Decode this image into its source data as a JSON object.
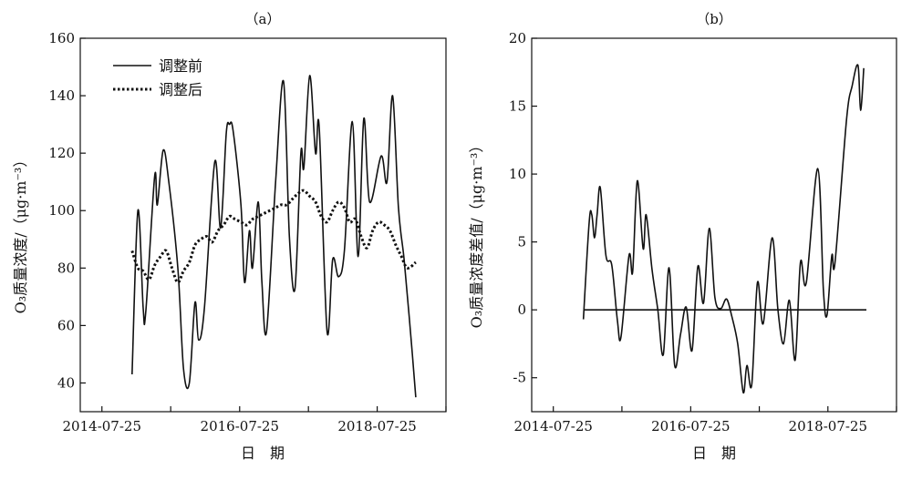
{
  "chart_data": [
    {
      "type": "line",
      "title": "（a）",
      "xlabel": "日　期",
      "ylabel": "O₃质量浓度/（μg·m⁻³）",
      "x_tick_labels": [
        "2014-07-25",
        "2016-07-25",
        "2018-07-25"
      ],
      "x_ticks": [
        "2014-07-25",
        "2015-07-25",
        "2016-07-25",
        "2017-07-25",
        "2018-07-25",
        "2019-07-25"
      ],
      "xlim": [
        "2014-04-01",
        "2019-07-25"
      ],
      "ylim": [
        30,
        160
      ],
      "y_ticks": [
        40,
        60,
        80,
        100,
        120,
        140,
        160
      ],
      "legend_position": "top-left",
      "grid": false,
      "series": [
        {
          "name": "调整前",
          "style": "solid",
          "points": [
            [
              "2015-01-01",
              43
            ],
            [
              "2015-02-01",
              100
            ],
            [
              "2015-03-01",
              66
            ],
            [
              "2015-03-15",
              65
            ],
            [
              "2015-05-01",
              112
            ],
            [
              "2015-05-15",
              102
            ],
            [
              "2015-06-15",
              121
            ],
            [
              "2015-07-15",
              110
            ],
            [
              "2015-09-01",
              80
            ],
            [
              "2015-10-01",
              45
            ],
            [
              "2015-11-01",
              40
            ],
            [
              "2015-12-01",
              68
            ],
            [
              "2015-12-20",
              55
            ],
            [
              "2016-01-20",
              66
            ],
            [
              "2016-03-15",
              117
            ],
            [
              "2016-04-15",
              94
            ],
            [
              "2016-05-15",
              127
            ],
            [
              "2016-06-01",
              130
            ],
            [
              "2016-06-20",
              128
            ],
            [
              "2016-08-01",
              102
            ],
            [
              "2016-08-20",
              75
            ],
            [
              "2016-09-15",
              93
            ],
            [
              "2016-10-01",
              80
            ],
            [
              "2016-11-01",
              103
            ],
            [
              "2016-11-20",
              75
            ],
            [
              "2016-12-15",
              58
            ],
            [
              "2017-02-01",
              110
            ],
            [
              "2017-03-15",
              145
            ],
            [
              "2017-04-15",
              91
            ],
            [
              "2017-05-15",
              73
            ],
            [
              "2017-06-15",
              120
            ],
            [
              "2017-07-01",
              115
            ],
            [
              "2017-08-01",
              147
            ],
            [
              "2017-09-01",
              120
            ],
            [
              "2017-09-20",
              129
            ],
            [
              "2017-11-01",
              58
            ],
            [
              "2017-12-01",
              83
            ],
            [
              "2018-01-01",
              77
            ],
            [
              "2018-02-01",
              86
            ],
            [
              "2018-03-15",
              131
            ],
            [
              "2018-04-15",
              84
            ],
            [
              "2018-05-15",
              132
            ],
            [
              "2018-06-15",
              103
            ],
            [
              "2018-08-15",
              119
            ],
            [
              "2018-09-15",
              110
            ],
            [
              "2018-10-15",
              140
            ],
            [
              "2018-11-15",
              101
            ],
            [
              "2018-12-15",
              83
            ],
            [
              "2019-01-15",
              60
            ],
            [
              "2019-02-15",
              35
            ]
          ]
        },
        {
          "name": "调整后",
          "style": "dotted",
          "points": [
            [
              "2015-01-01",
              86
            ],
            [
              "2015-02-01",
              80
            ],
            [
              "2015-03-01",
              79
            ],
            [
              "2015-04-01",
              76
            ],
            [
              "2015-05-01",
              81
            ],
            [
              "2015-06-01",
              84
            ],
            [
              "2015-07-01",
              86
            ],
            [
              "2015-08-01",
              80
            ],
            [
              "2015-09-01",
              75
            ],
            [
              "2015-10-01",
              79
            ],
            [
              "2015-11-01",
              82
            ],
            [
              "2015-12-01",
              88
            ],
            [
              "2016-01-01",
              90
            ],
            [
              "2016-02-01",
              91
            ],
            [
              "2016-03-01",
              89
            ],
            [
              "2016-04-01",
              93
            ],
            [
              "2016-05-01",
              95
            ],
            [
              "2016-06-01",
              98
            ],
            [
              "2016-07-01",
              97
            ],
            [
              "2016-08-01",
              96
            ],
            [
              "2016-09-01",
              95
            ],
            [
              "2016-10-01",
              97
            ],
            [
              "2016-11-01",
              98
            ],
            [
              "2016-12-01",
              99
            ],
            [
              "2017-01-01",
              100
            ],
            [
              "2017-02-01",
              101
            ],
            [
              "2017-03-01",
              102
            ],
            [
              "2017-04-01",
              102
            ],
            [
              "2017-05-01",
              104
            ],
            [
              "2017-06-01",
              106
            ],
            [
              "2017-07-01",
              107
            ],
            [
              "2017-08-01",
              105
            ],
            [
              "2017-09-01",
              103
            ],
            [
              "2017-10-01",
              98
            ],
            [
              "2017-11-01",
              96
            ],
            [
              "2017-12-01",
              100
            ],
            [
              "2018-01-01",
              103
            ],
            [
              "2018-02-01",
              101
            ],
            [
              "2018-03-01",
              96
            ],
            [
              "2018-04-01",
              97
            ],
            [
              "2018-05-01",
              91
            ],
            [
              "2018-06-01",
              87
            ],
            [
              "2018-07-01",
              93
            ],
            [
              "2018-08-01",
              96
            ],
            [
              "2018-09-01",
              95
            ],
            [
              "2018-10-01",
              93
            ],
            [
              "2018-11-01",
              88
            ],
            [
              "2018-12-01",
              84
            ],
            [
              "2019-01-01",
              80
            ],
            [
              "2019-02-15",
              82
            ]
          ]
        }
      ]
    },
    {
      "type": "line",
      "title": "（b）",
      "xlabel": "日　期",
      "ylabel": "O₃质量浓度差值/（μg·m⁻³）",
      "x_tick_labels": [
        "2014-07-25",
        "2016-07-25",
        "2018-07-25"
      ],
      "x_ticks": [
        "2014-07-25",
        "2015-07-25",
        "2016-07-25",
        "2017-07-25",
        "2018-07-25",
        "2019-07-25"
      ],
      "xlim": [
        "2014-04-01",
        "2019-07-25"
      ],
      "ylim": [
        -7.5,
        20
      ],
      "y_ticks": [
        -5,
        0,
        5,
        10,
        15,
        20
      ],
      "grid": false,
      "series": [
        {
          "style": "solid",
          "points": [
            [
              "2015-01-01",
              -0.7
            ],
            [
              "2015-02-01",
              6.5
            ],
            [
              "2015-02-15",
              7
            ],
            [
              "2015-03-01",
              5.3
            ],
            [
              "2015-03-15",
              7
            ],
            [
              "2015-04-01",
              9
            ],
            [
              "2015-05-01",
              4
            ],
            [
              "2015-06-01",
              3.3
            ],
            [
              "2015-07-01",
              -0.8
            ],
            [
              "2015-07-20",
              -2
            ],
            [
              "2015-09-01",
              4
            ],
            [
              "2015-09-20",
              2.8
            ],
            [
              "2015-10-15",
              9.5
            ],
            [
              "2015-11-15",
              4.5
            ],
            [
              "2015-12-01",
              7
            ],
            [
              "2016-01-01",
              3
            ],
            [
              "2016-02-01",
              0
            ],
            [
              "2016-03-01",
              -3.3
            ],
            [
              "2016-04-01",
              3.1
            ],
            [
              "2016-05-01",
              -4.1
            ],
            [
              "2016-06-01",
              -1.8
            ],
            [
              "2016-07-01",
              0.2
            ],
            [
              "2016-08-01",
              -3
            ],
            [
              "2016-09-01",
              3.2
            ],
            [
              "2016-10-01",
              0.5
            ],
            [
              "2016-11-01",
              6
            ],
            [
              "2016-12-01",
              0.9
            ],
            [
              "2017-01-01",
              0.1
            ],
            [
              "2017-02-01",
              0.8
            ],
            [
              "2017-03-01",
              -0.5
            ],
            [
              "2017-04-01",
              -2.5
            ],
            [
              "2017-05-01",
              -6.1
            ],
            [
              "2017-05-20",
              -4.1
            ],
            [
              "2017-06-15",
              -5.5
            ],
            [
              "2017-07-15",
              2
            ],
            [
              "2017-08-15",
              -1
            ],
            [
              "2017-10-01",
              5.3
            ],
            [
              "2017-11-01",
              0
            ],
            [
              "2017-12-01",
              -2.5
            ],
            [
              "2018-01-01",
              0.7
            ],
            [
              "2018-02-01",
              -3.7
            ],
            [
              "2018-03-01",
              3.5
            ],
            [
              "2018-04-01",
              2
            ],
            [
              "2018-06-01",
              10.4
            ],
            [
              "2018-07-01",
              1.5
            ],
            [
              "2018-07-20",
              -0.4
            ],
            [
              "2018-08-15",
              4
            ],
            [
              "2018-09-01",
              3.5
            ],
            [
              "2018-11-01",
              14
            ],
            [
              "2018-12-01",
              16.5
            ],
            [
              "2019-01-01",
              18
            ],
            [
              "2019-01-15",
              14.7
            ],
            [
              "2019-02-01",
              17.8
            ]
          ]
        },
        {
          "style": "solid",
          "points": [
            [
              "2015-01-01",
              0
            ],
            [
              "2019-02-15",
              0
            ]
          ]
        }
      ]
    }
  ]
}
